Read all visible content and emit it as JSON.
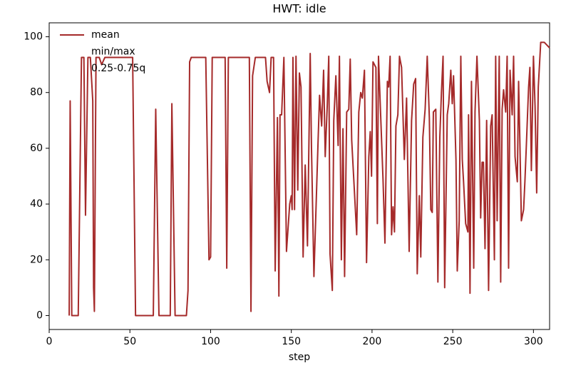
{
  "chart_data": {
    "type": "line",
    "title": "HWT: idle",
    "xlabel": "step",
    "x": [
      12.4,
      13,
      14,
      18,
      20,
      21.5,
      22.5,
      24,
      25.5,
      27,
      27.5,
      28,
      29,
      31,
      32.5,
      34.5,
      51.7,
      53.5,
      64.5,
      66,
      68,
      75,
      76,
      78,
      85,
      86,
      87,
      88,
      97,
      99,
      100,
      101,
      109,
      110,
      111,
      124,
      125,
      126,
      127.7,
      134,
      135,
      136.5,
      137.5,
      139,
      140,
      141.4,
      142.3,
      143,
      144,
      145.4,
      147,
      149,
      150,
      150.5,
      151,
      152,
      152.9,
      154,
      155,
      156,
      157.3,
      158.6,
      160,
      161.7,
      162.5,
      164,
      166.6,
      167.5,
      168.8,
      170,
      171,
      172.3,
      173.2,
      174,
      175.4,
      176.3,
      177.6,
      179,
      179.8,
      181,
      182,
      183,
      184.3,
      185.6,
      186.5,
      187.4,
      190.5,
      191.8,
      193,
      194,
      195.3,
      196.6,
      198,
      198.9,
      199.7,
      200.6,
      202.4,
      203.3,
      204,
      206.8,
      208,
      209.5,
      210.3,
      211.2,
      212.1,
      213,
      213.9,
      214.8,
      216,
      217,
      218.3,
      220,
      221.4,
      223,
      224.5,
      225.8,
      227,
      228,
      229.3,
      230.2,
      231.5,
      232.9,
      234.2,
      235.5,
      236.4,
      237.3,
      238,
      239.5,
      240.8,
      242,
      243,
      244,
      245,
      246.6,
      247.5,
      248.8,
      249.7,
      250.5,
      252,
      252.8,
      254,
      255,
      255.9,
      256.7,
      258,
      259.4,
      259.8,
      260.7,
      261.6,
      263,
      263.8,
      265,
      266.5,
      267.3,
      268.2,
      269,
      270,
      271,
      272.2,
      273.5,
      274.4,
      275.8,
      276.6,
      277.5,
      278.8,
      279.7,
      280.6,
      281.5,
      282.8,
      283.7,
      284.6,
      285.5,
      286.8,
      287.7,
      288.6,
      290,
      290.8,
      291.6,
      292.5,
      293.9,
      294.7,
      295.6,
      297,
      297.8,
      298.7,
      300,
      301,
      302,
      303,
      304.5,
      306.7,
      310
    ],
    "series": [
      {
        "name": "mean",
        "color": "#a52a2a",
        "values": [
          0,
          77,
          0,
          0,
          92.6,
          92.6,
          36,
          92.6,
          92.6,
          77,
          10,
          1.5,
          92.6,
          92.6,
          90,
          92.6,
          92.6,
          0,
          0,
          74,
          0,
          0,
          76,
          0,
          0,
          9,
          91,
          92.6,
          92.6,
          20,
          21,
          92.6,
          92.6,
          17,
          92.6,
          92.6,
          1.5,
          86,
          92.6,
          92.6,
          84,
          80,
          92.6,
          92.6,
          16,
          71,
          7,
          72,
          72,
          92.6,
          23,
          40,
          43,
          38,
          92.6,
          38,
          93,
          45,
          87,
          82,
          21,
          54,
          25,
          94,
          60,
          14,
          63,
          79,
          68,
          88,
          57,
          76,
          93,
          22,
          9,
          70,
          86,
          61,
          93,
          20,
          67,
          14,
          73,
          74,
          92,
          63,
          29,
          73,
          80,
          78,
          88,
          19,
          57,
          66,
          50,
          91,
          89,
          33,
          93,
          49,
          26,
          84,
          82,
          93,
          29,
          39,
          30,
          68,
          72,
          93,
          89,
          56,
          78,
          23,
          70,
          83,
          85,
          15,
          43,
          21,
          64,
          74,
          93,
          71,
          38,
          37,
          73,
          74,
          12,
          64,
          80,
          93,
          10,
          72,
          76,
          88,
          76,
          86,
          56,
          16,
          34,
          93,
          56,
          48,
          33,
          30,
          72,
          8,
          84,
          17,
          73,
          93,
          70,
          35,
          55,
          55,
          24,
          70,
          9,
          68,
          72,
          20,
          93,
          34,
          93,
          12,
          74,
          81,
          73,
          93,
          17,
          88,
          72,
          93,
          57,
          48,
          84,
          62,
          34,
          38,
          48,
          61,
          82,
          89,
          52,
          93,
          75,
          44,
          82,
          98,
          98,
          96
        ]
      },
      {
        "name": "min/max"
      },
      {
        "name": "0.25-0.75q"
      }
    ],
    "xlim": [
      0,
      310
    ],
    "ylim": [
      -5,
      105
    ],
    "xticks": [
      0,
      50,
      100,
      150,
      200,
      250,
      300
    ],
    "yticks": [
      0,
      20,
      40,
      60,
      80,
      100
    ],
    "legend": "upper left"
  }
}
